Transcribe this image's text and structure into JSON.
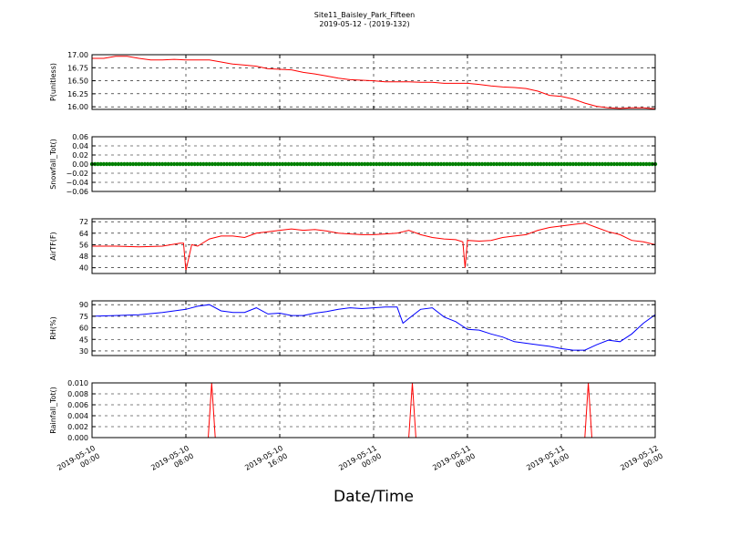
{
  "header": {
    "title": "Site11_Baisley_Park_Fifteen",
    "subtitle": "2019-05-12 - (2019-132)"
  },
  "x_axis": {
    "label": "Date/Time",
    "ticks": [
      {
        "value": 0,
        "line1": "2019-05-10",
        "line2": "00:00"
      },
      {
        "value": 8,
        "line1": "2019-05-10",
        "line2": "08:00"
      },
      {
        "value": 16,
        "line1": "2019-05-10",
        "line2": "16:00"
      },
      {
        "value": 24,
        "line1": "2019-05-11",
        "line2": "00:00"
      },
      {
        "value": 32,
        "line1": "2019-05-11",
        "line2": "08:00"
      },
      {
        "value": 40,
        "line1": "2019-05-11",
        "line2": "16:00"
      },
      {
        "value": 48,
        "line1": "2019-05-12",
        "line2": "00:00"
      }
    ]
  },
  "chart_data": [
    {
      "type": "line",
      "ylabel": "P(unitless)",
      "color": "#ff0000",
      "xlim": [
        0,
        48
      ],
      "ylim": [
        15.95,
        17.0
      ],
      "grid": true,
      "yticks": [
        {
          "value": 16.0,
          "label": "16.00"
        },
        {
          "value": 16.25,
          "label": "16.25"
        },
        {
          "value": 16.5,
          "label": "16.50"
        },
        {
          "value": 16.75,
          "label": "16.75"
        },
        {
          "value": 17.0,
          "label": "17.00"
        }
      ],
      "x": [
        0,
        1,
        2,
        3,
        4,
        5,
        6,
        7,
        8,
        9,
        10,
        11,
        12,
        13,
        14,
        15,
        16,
        17,
        18,
        19,
        20,
        21,
        22,
        23,
        24,
        25,
        26,
        27,
        28,
        29,
        30,
        31,
        32,
        33,
        34,
        35,
        36,
        37,
        38,
        39,
        40,
        41,
        42,
        43,
        44,
        45,
        46,
        47,
        48
      ],
      "values": [
        16.93,
        16.93,
        16.97,
        16.97,
        16.93,
        16.9,
        16.9,
        16.91,
        16.9,
        16.9,
        16.9,
        16.86,
        16.82,
        16.8,
        16.78,
        16.73,
        16.72,
        16.71,
        16.66,
        16.63,
        16.59,
        16.55,
        16.52,
        16.51,
        16.5,
        16.48,
        16.48,
        16.48,
        16.47,
        16.47,
        16.45,
        16.45,
        16.45,
        16.43,
        16.4,
        16.38,
        16.37,
        16.35,
        16.3,
        16.22,
        16.2,
        16.15,
        16.07,
        16.01,
        15.98,
        15.97,
        15.98,
        15.98,
        15.96
      ]
    },
    {
      "type": "scatter",
      "ylabel": "Snowfall_Tot()",
      "color": "#008000",
      "xlim": [
        0,
        48
      ],
      "ylim": [
        -0.06,
        0.06
      ],
      "grid": true,
      "yticks": [
        {
          "value": -0.06,
          "label": "−0.06"
        },
        {
          "value": -0.04,
          "label": "−0.04"
        },
        {
          "value": -0.02,
          "label": "−0.02"
        },
        {
          "value": 0.0,
          "label": "0.00"
        },
        {
          "value": 0.02,
          "label": "0.02"
        },
        {
          "value": 0.04,
          "label": "0.04"
        },
        {
          "value": 0.06,
          "label": "0.06"
        }
      ],
      "x": [
        0,
        1,
        2,
        3,
        4,
        5,
        6,
        7,
        8,
        9,
        10,
        11,
        12,
        13,
        14,
        15,
        16,
        17,
        18,
        19,
        20,
        21,
        22,
        23,
        24,
        25,
        26,
        27,
        28,
        29,
        30,
        31,
        32,
        33,
        34,
        35,
        36,
        37,
        38,
        39,
        40,
        41,
        42,
        43,
        44,
        45,
        46,
        47,
        48
      ],
      "values": [
        0,
        0,
        0,
        0,
        0,
        0,
        0,
        0,
        0,
        0,
        0,
        0,
        0,
        0,
        0,
        0,
        0,
        0,
        0,
        0,
        0,
        0,
        0,
        0,
        0,
        0,
        0,
        0,
        0,
        0,
        0,
        0,
        0,
        0,
        0,
        0,
        0,
        0,
        0,
        0,
        0,
        0,
        0,
        0,
        0,
        0,
        0,
        0,
        0
      ]
    },
    {
      "type": "line",
      "ylabel": "AirTF(F)",
      "color": "#ff0000",
      "xlim": [
        0,
        48
      ],
      "ylim": [
        36,
        74
      ],
      "grid": true,
      "yticks": [
        {
          "value": 40,
          "label": "40"
        },
        {
          "value": 48,
          "label": "48"
        },
        {
          "value": 56,
          "label": "56"
        },
        {
          "value": 64,
          "label": "64"
        },
        {
          "value": 72,
          "label": "72"
        }
      ],
      "x": [
        0,
        2,
        4,
        6,
        7.5,
        7.8,
        8,
        8.5,
        9,
        10,
        11,
        12,
        13,
        14,
        15,
        16,
        17,
        18,
        19,
        20,
        21,
        22,
        23,
        24,
        25,
        26,
        27,
        28,
        29,
        30,
        31,
        31.6,
        31.8,
        32,
        33,
        34,
        35,
        36,
        37,
        38,
        39,
        40,
        41,
        42,
        43,
        44,
        45,
        46,
        47,
        48
      ],
      "values": [
        55,
        55,
        54.5,
        55,
        57,
        57,
        38,
        56,
        55,
        60,
        62,
        62,
        61,
        64,
        65,
        66,
        67,
        66,
        66.5,
        65.5,
        64,
        63.5,
        63,
        63,
        63.5,
        64,
        66,
        63,
        61,
        60,
        59.5,
        58,
        40,
        59,
        58.5,
        59,
        61,
        62,
        63,
        66,
        68,
        69,
        70,
        71,
        68,
        65,
        63,
        59,
        58,
        56
      ]
    },
    {
      "type": "line",
      "ylabel": "RH(%)",
      "color": "#0000ff",
      "xlim": [
        0,
        48
      ],
      "ylim": [
        24,
        95
      ],
      "grid": true,
      "yticks": [
        {
          "value": 30,
          "label": "30"
        },
        {
          "value": 45,
          "label": "45"
        },
        {
          "value": 60,
          "label": "60"
        },
        {
          "value": 75,
          "label": "75"
        },
        {
          "value": 90,
          "label": "90"
        }
      ],
      "x": [
        0,
        2,
        4,
        6,
        8,
        9,
        10,
        11,
        12,
        13,
        14,
        15,
        16,
        17,
        18,
        19,
        20,
        21,
        22,
        23,
        24,
        25,
        26,
        26.5,
        27,
        28,
        29,
        30,
        31,
        32,
        33,
        34,
        35,
        36,
        37,
        38,
        39,
        40,
        41,
        42,
        43,
        44,
        45,
        46,
        47,
        48
      ],
      "values": [
        75,
        76,
        77,
        80,
        84,
        88,
        90,
        82,
        80,
        80,
        86,
        78,
        79,
        76,
        76,
        79,
        81,
        84,
        86,
        85,
        86,
        87,
        87,
        66,
        72,
        84,
        86,
        74,
        68,
        58,
        57,
        52,
        48,
        42,
        40,
        38,
        36,
        33,
        31,
        31,
        38,
        44,
        42,
        52,
        66,
        77
      ]
    },
    {
      "type": "line",
      "ylabel": "Rainfall_Tot()",
      "color": "#ff0000",
      "xlim": [
        0,
        48
      ],
      "ylim": [
        0,
        0.01
      ],
      "grid": true,
      "yticks": [
        {
          "value": 0.0,
          "label": "0.000"
        },
        {
          "value": 0.002,
          "label": "0.002"
        },
        {
          "value": 0.004,
          "label": "0.004"
        },
        {
          "value": 0.006,
          "label": "0.006"
        },
        {
          "value": 0.008,
          "label": "0.008"
        },
        {
          "value": 0.01,
          "label": "0.010"
        }
      ],
      "x": [
        0,
        9.9,
        10.2,
        10.5,
        27.0,
        27.3,
        27.6,
        42.0,
        42.3,
        42.6,
        48
      ],
      "values": [
        0,
        0,
        0.01,
        0,
        0,
        0.01,
        0,
        0,
        0.01,
        0,
        0
      ]
    }
  ]
}
